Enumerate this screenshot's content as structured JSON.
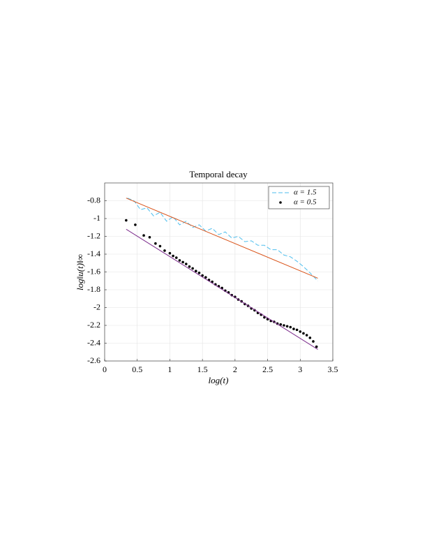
{
  "chart_data": {
    "type": "line",
    "title": "Temporal decay",
    "xlabel": "log(t)",
    "ylabel": "log‖u(t)‖∞",
    "xlim": [
      0,
      3.5
    ],
    "xticks": [
      0,
      0.5,
      1,
      1.5,
      2,
      2.5,
      3,
      3.5
    ],
    "ylim": [
      -2.6,
      -0.6
    ],
    "yticks": [
      -2.6,
      -2.4,
      -2.2,
      -2,
      -1.8,
      -1.6,
      -1.4,
      -1.2,
      -1,
      -0.8
    ],
    "grid": true,
    "legend": "northeast",
    "series": [
      {
        "name": "α = 1.5",
        "color": "#4dbeee",
        "style": "dashed",
        "x": [
          0.35,
          0.45,
          0.55,
          0.65,
          0.75,
          0.85,
          0.95,
          1.05,
          1.15,
          1.25,
          1.35,
          1.45,
          1.55,
          1.65,
          1.75,
          1.85,
          1.95,
          2.05,
          2.15,
          2.25,
          2.35,
          2.45,
          2.55,
          2.65,
          2.75,
          2.85,
          2.95,
          3.05,
          3.15,
          3.27
        ],
        "values": [
          -0.77,
          -0.8,
          -0.9,
          -0.88,
          -0.97,
          -0.93,
          -1.03,
          -0.98,
          -1.07,
          -1.03,
          -1.1,
          -1.07,
          -1.14,
          -1.11,
          -1.18,
          -1.15,
          -1.22,
          -1.2,
          -1.26,
          -1.25,
          -1.3,
          -1.3,
          -1.35,
          -1.35,
          -1.41,
          -1.43,
          -1.48,
          -1.54,
          -1.61,
          -1.7
        ]
      },
      {
        "color": "#d95319",
        "style": "solid",
        "x": [
          0.33,
          3.27
        ],
        "values": [
          -0.77,
          -1.67
        ]
      },
      {
        "name": "α = 0.5",
        "color": "#000000",
        "style": "dots",
        "x": [
          0.33,
          0.47,
          0.6,
          0.69,
          0.78,
          0.85,
          0.92,
          1.0,
          1.05,
          1.1,
          1.15,
          1.2,
          1.25,
          1.3,
          1.35,
          1.4,
          1.45,
          1.5,
          1.55,
          1.6,
          1.65,
          1.7,
          1.75,
          1.8,
          1.85,
          1.9,
          1.95,
          2.0,
          2.05,
          2.1,
          2.15,
          2.2,
          2.25,
          2.3,
          2.35,
          2.4,
          2.45,
          2.5,
          2.55,
          2.6,
          2.65,
          2.7,
          2.75,
          2.8,
          2.85,
          2.9,
          2.95,
          3.0,
          3.05,
          3.1,
          3.15,
          3.2,
          3.25
        ],
        "values": [
          -1.02,
          -1.07,
          -1.19,
          -1.21,
          -1.28,
          -1.31,
          -1.36,
          -1.39,
          -1.42,
          -1.44,
          -1.47,
          -1.49,
          -1.51,
          -1.54,
          -1.56,
          -1.59,
          -1.61,
          -1.64,
          -1.66,
          -1.69,
          -1.71,
          -1.74,
          -1.76,
          -1.78,
          -1.81,
          -1.83,
          -1.86,
          -1.88,
          -1.91,
          -1.93,
          -1.96,
          -1.98,
          -2.01,
          -2.03,
          -2.06,
          -2.08,
          -2.11,
          -2.13,
          -2.15,
          -2.16,
          -2.18,
          -2.19,
          -2.2,
          -2.21,
          -2.22,
          -2.24,
          -2.25,
          -2.27,
          -2.29,
          -2.31,
          -2.34,
          -2.38,
          -2.44
        ]
      },
      {
        "color": "#7e2f8e",
        "style": "solid",
        "x": [
          0.33,
          3.27
        ],
        "values": [
          -1.12,
          -2.47
        ]
      }
    ]
  }
}
